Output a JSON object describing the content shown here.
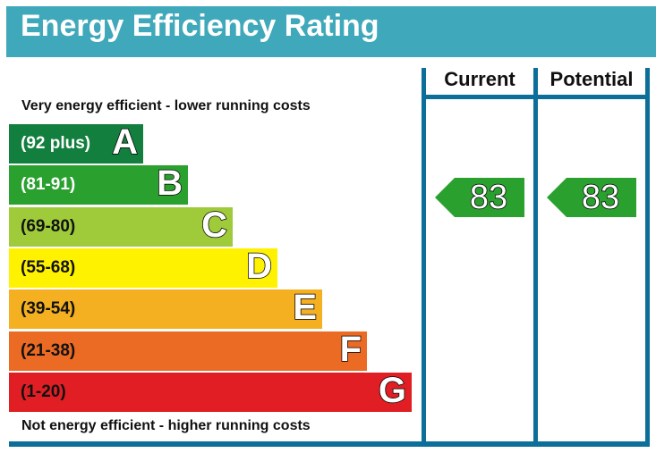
{
  "title": "Energy Efficiency Rating",
  "chart_data": {
    "type": "bar",
    "title": "Energy Efficiency Rating",
    "top_caption": "Very energy efficient - lower running costs",
    "bottom_caption": "Not energy efficient - higher running costs",
    "bands": [
      {
        "letter": "A",
        "range": "(92 plus)",
        "color": "#127f3e"
      },
      {
        "letter": "B",
        "range": "(81-91)",
        "color": "#2aa12f"
      },
      {
        "letter": "C",
        "range": "(69-80)",
        "color": "#9fcb3b"
      },
      {
        "letter": "D",
        "range": "(55-68)",
        "color": "#fff200"
      },
      {
        "letter": "E",
        "range": "(39-54)",
        "color": "#f4b020"
      },
      {
        "letter": "F",
        "range": "(21-38)",
        "color": "#eb6a24"
      },
      {
        "letter": "G",
        "range": "(1-20)",
        "color": "#e01e24"
      }
    ],
    "columns": [
      {
        "label": "Current",
        "value": 83,
        "band": "B",
        "color": "#2aa12f"
      },
      {
        "label": "Potential",
        "value": 83,
        "band": "B",
        "color": "#2aa12f"
      }
    ]
  }
}
